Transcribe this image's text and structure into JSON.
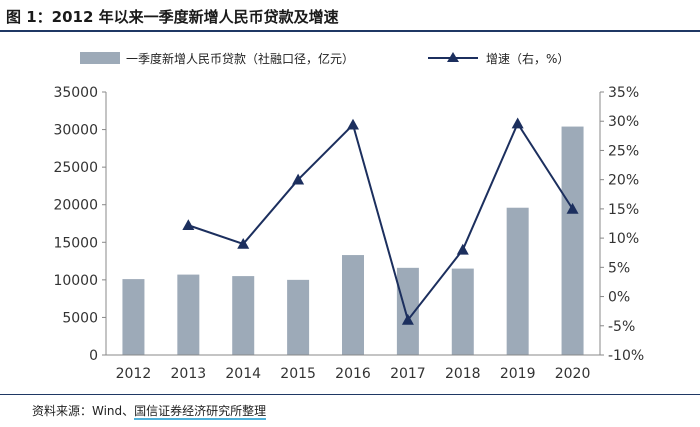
{
  "header": {
    "title": "图 1：2012 年以来一季度新增人民币贷款及增速"
  },
  "footer": {
    "source_prefix": "资料来源：Wind、",
    "source_org": "国信证券经济研究所整理"
  },
  "chart_data": {
    "type": "bar",
    "categories": [
      "2012",
      "2013",
      "2014",
      "2015",
      "2016",
      "2017",
      "2018",
      "2019",
      "2020"
    ],
    "series": [
      {
        "name": "一季度新增人民币贷款（社融口径，亿元）",
        "type": "bar",
        "axis": "left",
        "values": [
          10100,
          10700,
          10500,
          10000,
          13300,
          11600,
          11500,
          19600,
          30400
        ]
      },
      {
        "name": "增速（右，%）",
        "type": "line",
        "axis": "right",
        "values": [
          null,
          12.2,
          9.0,
          20.0,
          29.4,
          -4.0,
          8.0,
          29.6,
          15.0
        ]
      }
    ],
    "ylim_left": [
      0,
      35000
    ],
    "yticks_left": [
      0,
      5000,
      10000,
      15000,
      20000,
      25000,
      30000,
      35000
    ],
    "ylim_right": [
      -10,
      35
    ],
    "yticks_right_labels": [
      "-10%",
      "-5%",
      "0%",
      "5%",
      "10%",
      "15%",
      "20%",
      "25%",
      "30%",
      "35%"
    ],
    "legend_position": "top",
    "grid": false,
    "colors": {
      "bar": "#9daab8",
      "line": "#1c2f5e",
      "axis": "#888888"
    }
  }
}
